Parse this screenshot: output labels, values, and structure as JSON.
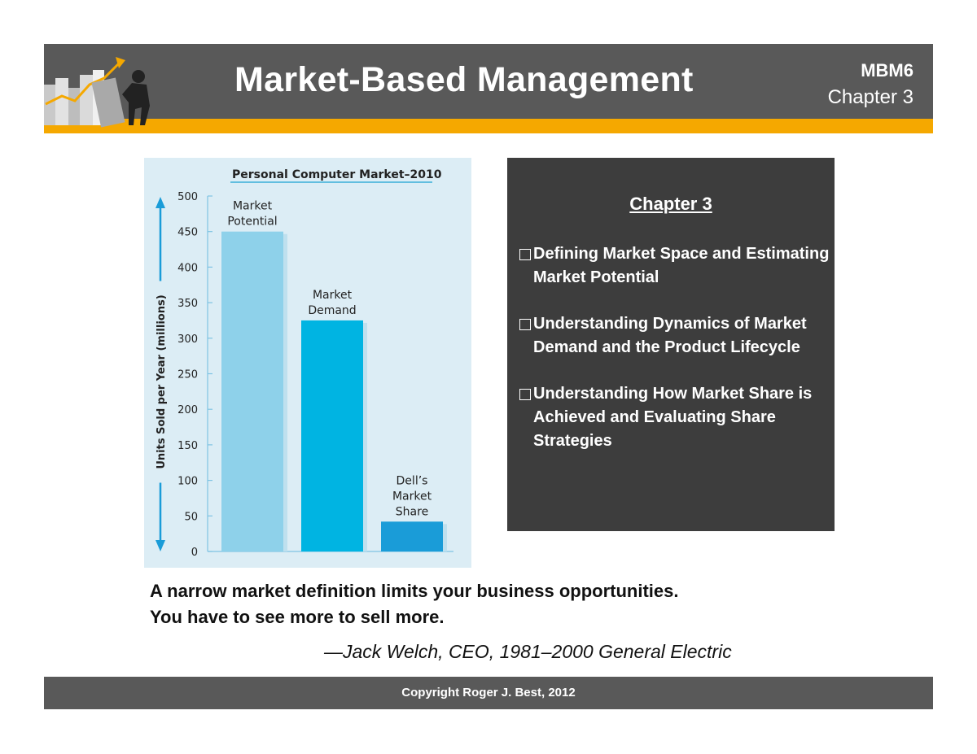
{
  "header": {
    "title": "Market-Based Management",
    "course": "MBM6",
    "chapter": "Chapter 3",
    "logo_icon": "marketing-push-icon"
  },
  "colors": {
    "header_gray": "#595959",
    "accent_orange": "#f5a800",
    "chart_bg": "#dcedf5",
    "bar_light": "#8ed1ea",
    "bar_mid": "#00b4e2",
    "bar_dark": "#1a9cd8",
    "dark_box": "#3d3d3d"
  },
  "chart_data": {
    "type": "bar",
    "title": "Personal Computer Market–2010",
    "ylabel": "Units Sold per Year (millions)",
    "xlabel": "",
    "ylim": [
      0,
      500
    ],
    "yticks": [
      0,
      50,
      100,
      150,
      200,
      250,
      300,
      350,
      400,
      450,
      500
    ],
    "categories": [
      "Market Potential",
      "Market Demand",
      "Dell's Market Share"
    ],
    "category_label_lines": [
      [
        "Market",
        "Potential"
      ],
      [
        "Market",
        "Demand"
      ],
      [
        "Dell’s",
        "Market",
        "Share"
      ]
    ],
    "values": [
      450,
      325,
      42
    ],
    "grid": false,
    "legend": "none"
  },
  "panel": {
    "title": "Chapter 3",
    "bullets": [
      "Defining Market Space and Estimating Market Potential",
      "Understanding Dynamics of Market Demand and the Product Lifecycle",
      "Understanding How Market Share is Achieved and Evaluating Share Strategies"
    ]
  },
  "quote": {
    "line1": "A narrow market definition limits your business opportunities.",
    "line2": "You have to see more to sell more.",
    "attribution": "—Jack Welch, CEO, 1981–2000 General Electric"
  },
  "footer": {
    "copyright": "Copyright Roger J. Best, 2012"
  }
}
